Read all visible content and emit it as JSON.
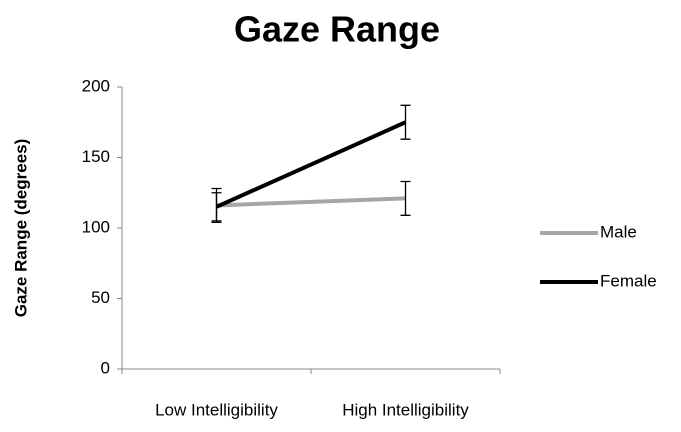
{
  "chart_data": {
    "type": "line",
    "title": "Gaze Range",
    "y_label": "Gaze Range (degrees)",
    "categories": [
      "Low Intelligibility",
      "High Intelligibility"
    ],
    "series": [
      {
        "name": "Male",
        "color": "#a6a6a6",
        "values": [
          116,
          121
        ],
        "errors": [
          12,
          12
        ]
      },
      {
        "name": "Female",
        "color": "#000000",
        "values": [
          115,
          175
        ],
        "errors": [
          10,
          12
        ]
      }
    ],
    "ylim": [
      0,
      200
    ],
    "yticks": [
      0,
      50,
      100,
      150,
      200
    ],
    "legend": "right"
  }
}
